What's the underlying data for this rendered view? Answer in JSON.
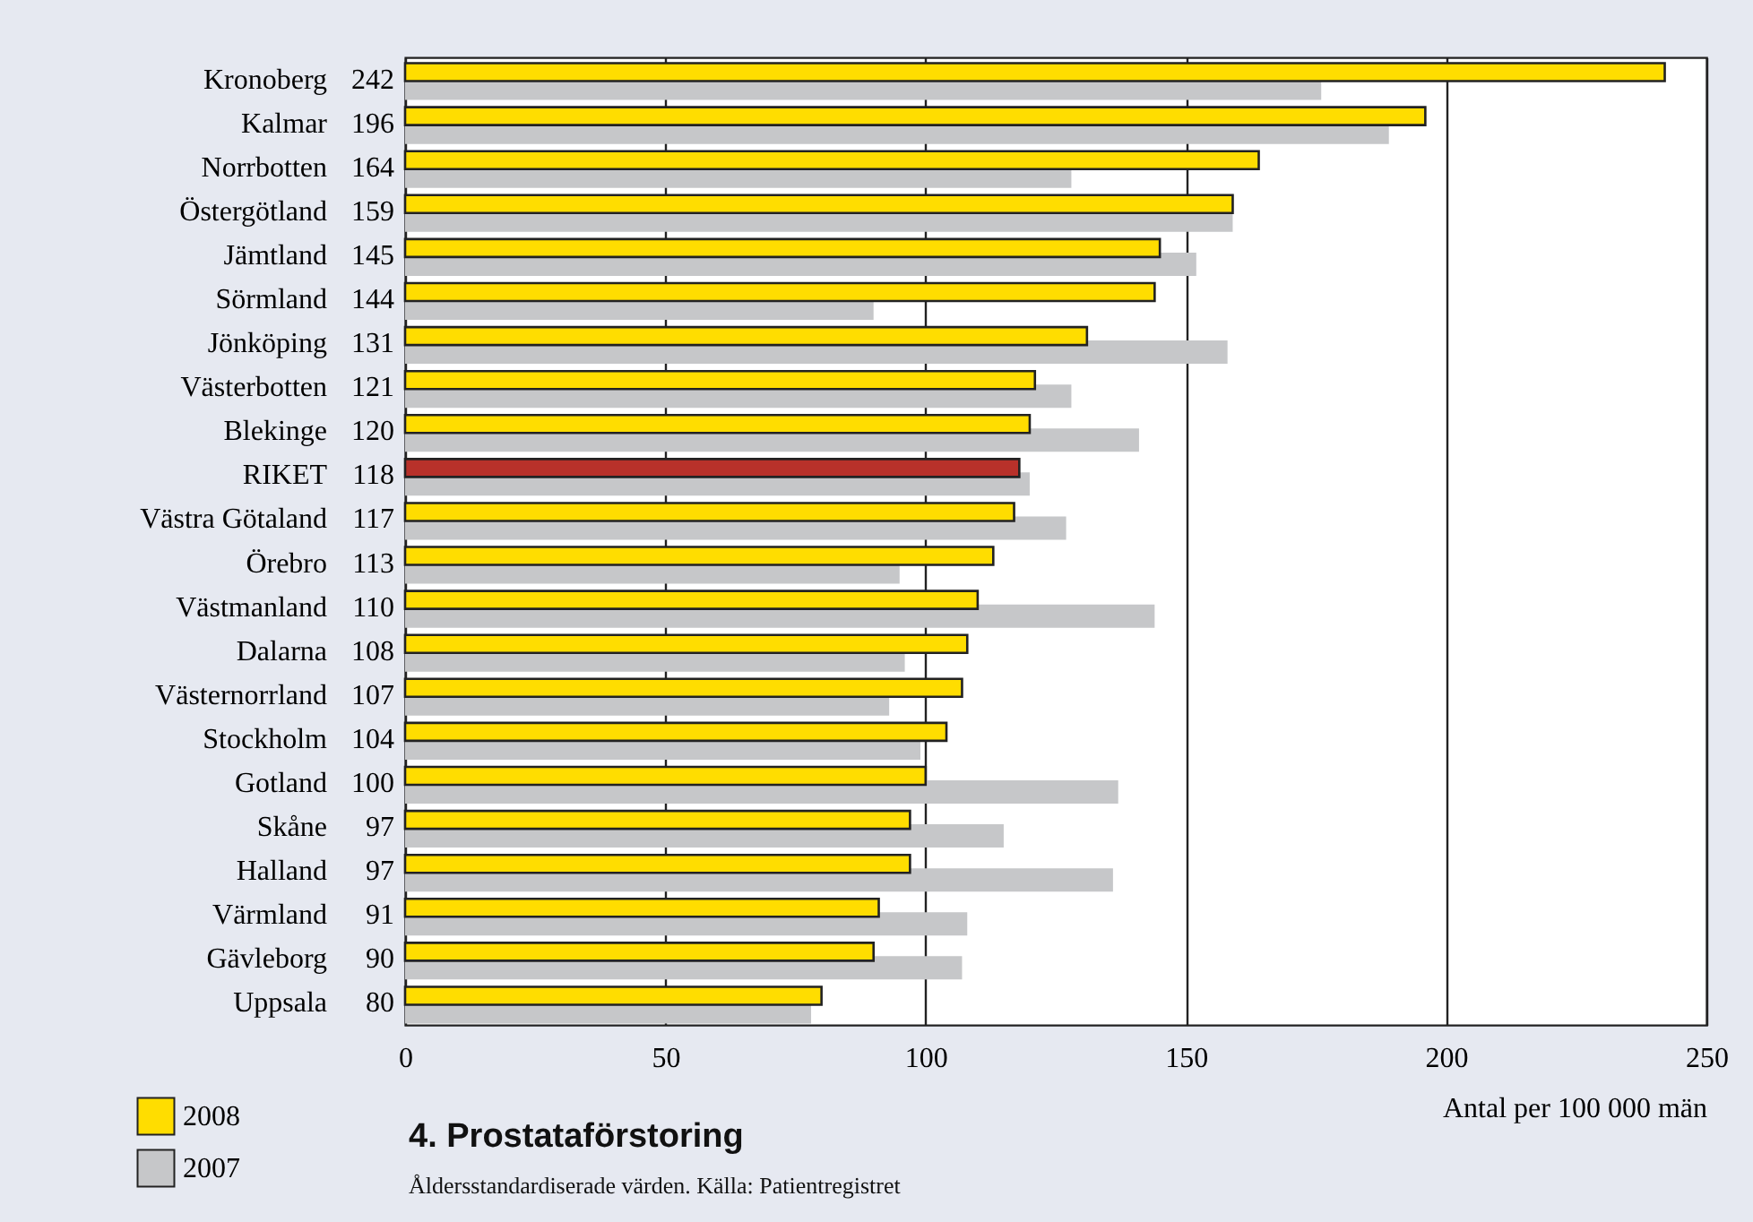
{
  "chart_data": {
    "type": "bar",
    "orientation": "horizontal",
    "title": "4.  Prostataförstoring",
    "xlabel": "Antal per 100 000 män",
    "annotations": [
      "Åldersstandardiserade värden.  Källa: Patientregistret"
    ],
    "categories": [
      "Kronoberg",
      "Kalmar",
      "Norrbotten",
      "Östergötland",
      "Jämtland",
      "Sörmland",
      "Jönköping",
      "Västerbotten",
      "Blekinge",
      "RIKET",
      "Västra Götaland",
      "Örebro",
      "Västmanland",
      "Dalarna",
      "Västernorrland",
      "Stockholm",
      "Gotland",
      "Skåne",
      "Halland",
      "Värmland",
      "Gävleborg",
      "Uppsala"
    ],
    "series": [
      {
        "name": "2008",
        "color": "#ffdd00",
        "colors": [
          "#ffdd00",
          "#ffdd00",
          "#ffdd00",
          "#ffdd00",
          "#ffdd00",
          "#ffdd00",
          "#ffdd00",
          "#ffdd00",
          "#ffdd00",
          "#b8312a",
          "#ffdd00",
          "#ffdd00",
          "#ffdd00",
          "#ffdd00",
          "#ffdd00",
          "#ffdd00",
          "#ffdd00",
          "#ffdd00",
          "#ffdd00",
          "#ffdd00",
          "#ffdd00",
          "#ffdd00"
        ],
        "values": [
          242,
          196,
          164,
          159,
          145,
          144,
          131,
          121,
          120,
          118,
          117,
          113,
          110,
          108,
          107,
          104,
          100,
          97,
          97,
          91,
          90,
          80
        ],
        "value_labels": [
          "242",
          "196",
          "164",
          "159",
          "145",
          "144",
          "131",
          "121",
          "120",
          "118",
          "117",
          "113",
          "110",
          "108",
          "107",
          "104",
          "100",
          "97",
          "97",
          "91",
          "90",
          "80"
        ]
      },
      {
        "name": "2007",
        "color": "#c6c7c9",
        "values": [
          176,
          189,
          128,
          159,
          152,
          90,
          158,
          128,
          141,
          120,
          127,
          95,
          144,
          96,
          93,
          99,
          137,
          115,
          136,
          108,
          107,
          78
        ]
      }
    ],
    "xlim": [
      0,
      250
    ],
    "xticks": [
      0,
      50,
      100,
      150,
      200,
      250
    ],
    "grid": "x",
    "legend": "bottom left"
  }
}
